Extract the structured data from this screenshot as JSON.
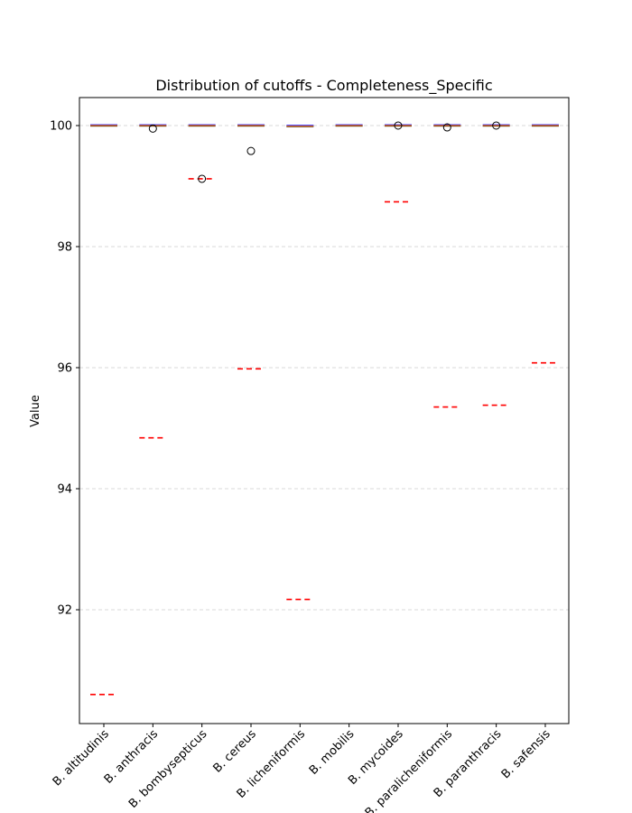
{
  "chart_data": {
    "type": "box",
    "title": "Distribution of cutoffs - Completeness_Specific",
    "xlabel": "",
    "ylabel": "Value",
    "ylim": [
      90.1,
      100.5
    ],
    "yticks": [
      92,
      94,
      96,
      98,
      100
    ],
    "grid": "y-dashed",
    "categories": [
      "B. altitudinis",
      "B. anthracis",
      "B. bombysepticus",
      "B. cereus",
      "B. licheniformis",
      "B. mobilis",
      "B. mycoides",
      "B. paralicheniformis",
      "B. paranthracis",
      "B. safensis"
    ],
    "box_values": [
      100.0,
      100.0,
      100.0,
      100.0,
      99.99,
      100.0,
      100.0,
      100.0,
      100.0,
      100.0
    ],
    "outliers": [
      [],
      [
        99.95
      ],
      [
        99.12
      ],
      [
        99.58
      ],
      [],
      [],
      [
        100.0
      ],
      [
        99.97
      ],
      [
        100.0
      ],
      []
    ],
    "cutoffs": [
      90.6,
      94.84,
      99.12,
      95.98,
      92.17,
      null,
      98.74,
      95.35,
      95.38,
      96.08
    ],
    "colors": {
      "box": "#0000ff",
      "median": "#ff7f0e",
      "cutoff": "#ff0000",
      "grid": "#cccccc"
    }
  }
}
